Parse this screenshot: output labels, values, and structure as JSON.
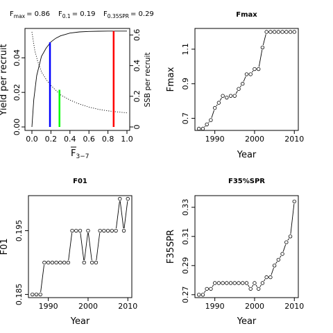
{
  "chart_data": [
    {
      "type": "line",
      "title_items": [
        {
          "base": "F",
          "sub": "max",
          "value": "= 0.86"
        },
        {
          "base": "F",
          "sub": "0.1",
          "value": "= 0.19"
        },
        {
          "base": "F",
          "sub": "0.35SPR",
          "value": "= 0.29"
        }
      ],
      "xlabel": {
        "base": "F",
        "sub": "3−7",
        "overline": true
      },
      "ylabel": "Yield per recruit",
      "ylabel_right": "SSB per recruit",
      "xlim": [
        0,
        1
      ],
      "ylim": [
        0,
        0.055
      ],
      "ylim_right": [
        0,
        0.62
      ],
      "x_ticks": [
        0.0,
        0.2,
        0.4,
        0.6,
        0.8,
        1.0
      ],
      "x_tick_labels": [
        "0.0",
        "0.2",
        "0.4",
        "0.6",
        "0.8",
        "1.0"
      ],
      "y_ticks": [
        0.0,
        0.02,
        0.04
      ],
      "y_tick_labels": [
        "0.00",
        "0.02",
        "0.04"
      ],
      "y_right_ticks": [
        0,
        0.2,
        0.4,
        0.6
      ],
      "y_right_tick_labels": [
        "0",
        "0.2",
        "0.4",
        "0.6"
      ],
      "series": [
        {
          "name": "",
          "axis": "left",
          "style": "solid",
          "color": "#000000",
          "x": [
            0,
            0.02,
            0.05,
            0.1,
            0.15,
            0.2,
            0.25,
            0.3,
            0.4,
            0.5,
            0.6,
            0.7,
            0.8,
            0.9,
            1.0
          ],
          "y": [
            0,
            0.0158,
            0.0297,
            0.0408,
            0.0456,
            0.0492,
            0.0513,
            0.0527,
            0.0543,
            0.055,
            0.0553,
            0.0554,
            0.0555,
            0.0555,
            0.0555
          ]
        },
        {
          "name": "",
          "axis": "right",
          "style": "dotted",
          "color": "#000000",
          "x": [
            0,
            0.03,
            0.06,
            0.1,
            0.15,
            0.2,
            0.3,
            0.4,
            0.5,
            0.6,
            0.7,
            0.8,
            0.9,
            1.0
          ],
          "y": [
            0.62,
            0.5,
            0.43,
            0.36,
            0.31,
            0.27,
            0.21,
            0.175,
            0.15,
            0.13,
            0.115,
            0.105,
            0.098,
            0.092
          ]
        }
      ],
      "vlines": [
        {
          "x": 0.19,
          "y_to": 0.049,
          "color": "#0000FF"
        },
        {
          "x": 0.29,
          "y_to": 0.0215,
          "color": "#00FF00"
        },
        {
          "x": 0.86,
          "y_to": 0.0555,
          "color": "#FF0000"
        }
      ]
    },
    {
      "type": "scatter",
      "title": "Fmax",
      "xlabel": "Year",
      "ylabel": "Fmax",
      "xlim": [
        1985,
        2011
      ],
      "ylim": [
        0.63,
        1.22
      ],
      "x_ticks": [
        1990,
        2000,
        2010
      ],
      "x_tick_labels": [
        "1990",
        "2000",
        "2010"
      ],
      "y_ticks": [
        0.7,
        0.9,
        1.1
      ],
      "y_tick_labels": [
        "0.7",
        "0.9",
        "1.1"
      ],
      "x": [
        1986,
        1987,
        1988,
        1989,
        1990,
        1991,
        1992,
        1993,
        1994,
        1995,
        1996,
        1997,
        1998,
        1999,
        2000,
        2001,
        2002,
        2003,
        2004,
        2005,
        2006,
        2007,
        2008,
        2009,
        2010
      ],
      "y": [
        0.64,
        0.64,
        0.665,
        0.69,
        0.76,
        0.79,
        0.83,
        0.82,
        0.83,
        0.83,
        0.87,
        0.9,
        0.955,
        0.955,
        0.985,
        0.985,
        1.11,
        1.2,
        1.2,
        1.2,
        1.2,
        1.2,
        1.2,
        1.2,
        1.2
      ]
    },
    {
      "type": "scatter",
      "title": "F01",
      "xlabel": "Year",
      "ylabel": "F01",
      "xlim": [
        1985,
        2011
      ],
      "ylim": [
        0.1845,
        0.2005
      ],
      "x_ticks": [
        1990,
        2000,
        2010
      ],
      "x_tick_labels": [
        "1990",
        "2000",
        "2010"
      ],
      "y_ticks": [
        0.185,
        0.195
      ],
      "y_tick_labels": [
        "0.185",
        "0.195"
      ],
      "x": [
        1986,
        1987,
        1988,
        1989,
        1990,
        1991,
        1992,
        1993,
        1994,
        1995,
        1996,
        1997,
        1998,
        1999,
        2000,
        2001,
        2002,
        2003,
        2004,
        2005,
        2006,
        2007,
        2008,
        2009,
        2010
      ],
      "y": [
        0.185,
        0.185,
        0.185,
        0.19,
        0.19,
        0.19,
        0.19,
        0.19,
        0.19,
        0.19,
        0.195,
        0.195,
        0.195,
        0.19,
        0.195,
        0.19,
        0.19,
        0.195,
        0.195,
        0.195,
        0.195,
        0.195,
        0.2,
        0.195,
        0.2
      ]
    },
    {
      "type": "scatter",
      "title": "F35%SPR",
      "xlabel": "Year",
      "ylabel": "F35SPR",
      "xlim": [
        1985,
        2011
      ],
      "ylim": [
        0.268,
        0.338
      ],
      "x_ticks": [
        1990,
        2000,
        2010
      ],
      "x_tick_labels": [
        "1990",
        "2000",
        "2010"
      ],
      "y_ticks": [
        0.27,
        0.29,
        0.31,
        0.33
      ],
      "y_tick_labels": [
        "0.27",
        "0.29",
        "0.31",
        "0.33"
      ],
      "x": [
        1986,
        1987,
        1988,
        1989,
        1990,
        1991,
        1992,
        1993,
        1994,
        1995,
        1996,
        1997,
        1998,
        1999,
        2000,
        2001,
        2002,
        2003,
        2004,
        2005,
        2006,
        2007,
        2008,
        2009,
        2010
      ],
      "y": [
        0.27,
        0.27,
        0.274,
        0.274,
        0.278,
        0.278,
        0.278,
        0.278,
        0.278,
        0.278,
        0.278,
        0.278,
        0.278,
        0.274,
        0.278,
        0.274,
        0.278,
        0.282,
        0.282,
        0.29,
        0.294,
        0.298,
        0.306,
        0.31,
        0.334
      ]
    }
  ]
}
